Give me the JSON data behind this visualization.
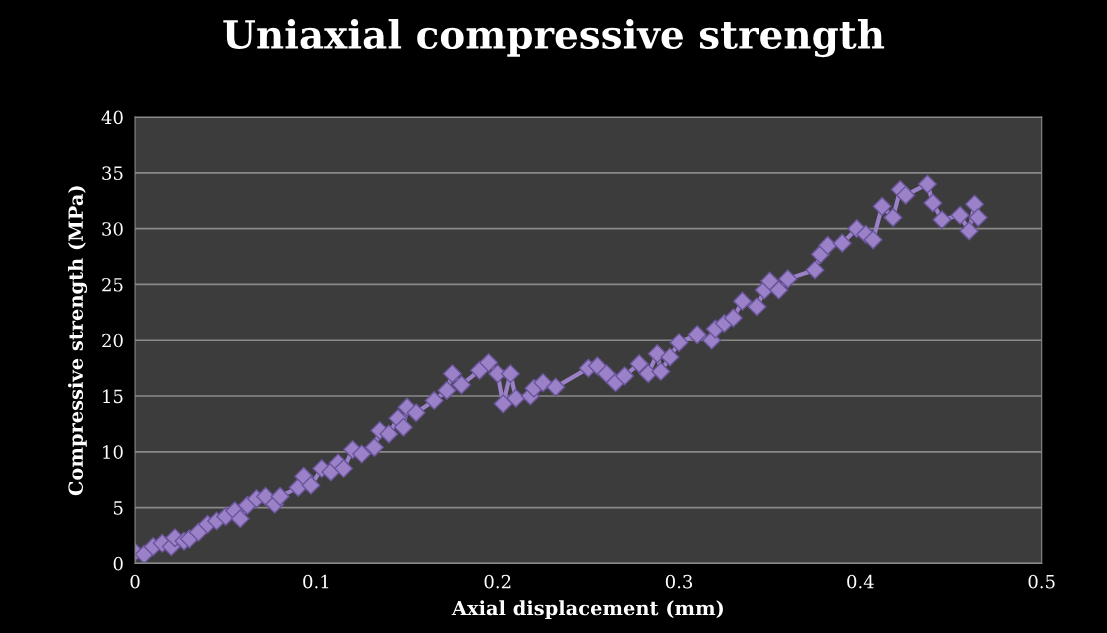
{
  "chart_data": {
    "type": "line",
    "title": "Uniaxial compressive strength",
    "xlabel": "Axial displacement (mm)",
    "ylabel": "Compressive strength (MPa)",
    "xlim": [
      0,
      0.5
    ],
    "xticks": [
      0,
      0.1,
      0.2,
      0.3,
      0.4,
      0.5
    ],
    "ylim": [
      0,
      40
    ],
    "yticks": [
      0,
      5,
      10,
      15,
      20,
      25,
      30,
      35,
      40
    ],
    "grid": "y",
    "marker": "diamond",
    "line_style": "solid",
    "series": [
      {
        "color": "#9b82c8",
        "x": [
          0,
          0.005,
          0.01,
          0.015,
          0.02,
          0.022,
          0.027,
          0.03,
          0.035,
          0.04,
          0.045,
          0.05,
          0.055,
          0.058,
          0.062,
          0.067,
          0.072,
          0.077,
          0.08,
          0.09,
          0.093,
          0.097,
          0.103,
          0.108,
          0.112,
          0.115,
          0.12,
          0.125,
          0.132,
          0.135,
          0.14,
          0.145,
          0.148,
          0.15,
          0.155,
          0.165,
          0.172,
          0.175,
          0.18,
          0.19,
          0.195,
          0.2,
          0.203,
          0.207,
          0.21,
          0.218,
          0.22,
          0.225,
          0.232,
          0.25,
          0.255,
          0.26,
          0.265,
          0.27,
          0.278,
          0.283,
          0.288,
          0.29,
          0.295,
          0.3,
          0.31,
          0.318,
          0.32,
          0.325,
          0.33,
          0.335,
          0.343,
          0.347,
          0.35,
          0.355,
          0.36,
          0.375,
          0.378,
          0.382,
          0.39,
          0.398,
          0.403,
          0.407,
          0.412,
          0.418,
          0.422,
          0.425,
          0.437,
          0.44,
          0.445,
          0.455,
          0.46,
          0.463,
          0.465
        ],
        "values": [
          1,
          0.8,
          1.5,
          1.8,
          1.5,
          2.3,
          2,
          2.2,
          2.8,
          3.5,
          3.8,
          4.2,
          4.7,
          4,
          5.2,
          5.8,
          6,
          5.3,
          6,
          6.8,
          7.8,
          7,
          8.5,
          8.2,
          9,
          8.5,
          10.2,
          9.8,
          10.4,
          11.9,
          11.6,
          13,
          12.2,
          14,
          13.5,
          14.6,
          15.5,
          17,
          16,
          17.3,
          18,
          17,
          14.3,
          17,
          14.8,
          15,
          15.7,
          16.2,
          15.8,
          17.5,
          17.7,
          17,
          16.2,
          16.8,
          17.9,
          17,
          18.8,
          17.2,
          18.5,
          19.8,
          20.5,
          20,
          21,
          21.5,
          22,
          23.5,
          23,
          24.5,
          25.3,
          24.5,
          25.5,
          26.3,
          27.7,
          28.5,
          28.7,
          30,
          29.5,
          29,
          32,
          31,
          33.5,
          33,
          34,
          32.3,
          30.8,
          31.2,
          29.8,
          32.2,
          31
        ]
      }
    ]
  }
}
